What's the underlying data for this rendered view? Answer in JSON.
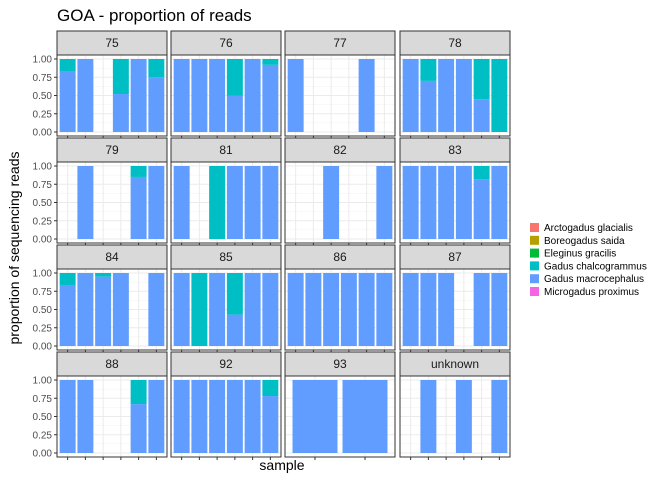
{
  "chart_data": {
    "type": "bar",
    "subtype": "stacked-proportion-faceted",
    "title": "GOA - proportion of reads",
    "xlabel": "sample",
    "ylabel": "proportion of sequencing reads",
    "ylim": [
      0,
      1
    ],
    "yticks": [
      "0.00",
      "0.25",
      "0.50",
      "0.75",
      "1.00"
    ],
    "grid": true,
    "legend_position": "right",
    "legend": [
      {
        "name": "Arctogadus glacialis",
        "color": "#F8766D"
      },
      {
        "name": "Boreogadus saida",
        "color": "#B79F00"
      },
      {
        "name": "Eleginus gracilis",
        "color": "#00BA38"
      },
      {
        "name": "Gadus chalcogrammus",
        "color": "#00BFC4"
      },
      {
        "name": "Gadus macrocephalus",
        "color": "#619CFF"
      },
      {
        "name": "Microgadus proximus",
        "color": "#F564E3"
      }
    ],
    "facets": [
      {
        "label": "75",
        "samples": 6,
        "bars": [
          {
            "slot": 0,
            "segments": [
              {
                "species": "Gadus macrocephalus",
                "value": 0.83
              },
              {
                "species": "Gadus chalcogrammus",
                "value": 0.17
              }
            ]
          },
          {
            "slot": 1,
            "segments": [
              {
                "species": "Gadus macrocephalus",
                "value": 1.0
              }
            ]
          },
          {
            "slot": 3,
            "segments": [
              {
                "species": "Gadus macrocephalus",
                "value": 0.52
              },
              {
                "species": "Gadus chalcogrammus",
                "value": 0.48
              }
            ]
          },
          {
            "slot": 4,
            "segments": [
              {
                "species": "Gadus macrocephalus",
                "value": 1.0
              }
            ]
          },
          {
            "slot": 5,
            "segments": [
              {
                "species": "Gadus macrocephalus",
                "value": 0.75
              },
              {
                "species": "Gadus chalcogrammus",
                "value": 0.25
              }
            ]
          }
        ]
      },
      {
        "label": "76",
        "samples": 6,
        "bars": [
          {
            "slot": 0,
            "segments": [
              {
                "species": "Gadus macrocephalus",
                "value": 1.0
              }
            ]
          },
          {
            "slot": 1,
            "segments": [
              {
                "species": "Gadus macrocephalus",
                "value": 1.0
              }
            ]
          },
          {
            "slot": 2,
            "segments": [
              {
                "species": "Gadus macrocephalus",
                "value": 1.0
              }
            ]
          },
          {
            "slot": 3,
            "segments": [
              {
                "species": "Gadus macrocephalus",
                "value": 0.5
              },
              {
                "species": "Gadus chalcogrammus",
                "value": 0.5
              }
            ]
          },
          {
            "slot": 4,
            "segments": [
              {
                "species": "Gadus macrocephalus",
                "value": 1.0
              }
            ]
          },
          {
            "slot": 5,
            "segments": [
              {
                "species": "Gadus macrocephalus",
                "value": 0.92
              },
              {
                "species": "Gadus chalcogrammus",
                "value": 0.08
              }
            ]
          }
        ]
      },
      {
        "label": "77",
        "samples": 6,
        "bars": [
          {
            "slot": 0,
            "segments": [
              {
                "species": "Gadus macrocephalus",
                "value": 1.0
              }
            ]
          },
          {
            "slot": 4,
            "segments": [
              {
                "species": "Gadus macrocephalus",
                "value": 1.0
              }
            ]
          }
        ]
      },
      {
        "label": "78",
        "samples": 6,
        "bars": [
          {
            "slot": 0,
            "segments": [
              {
                "species": "Gadus macrocephalus",
                "value": 1.0
              }
            ]
          },
          {
            "slot": 1,
            "segments": [
              {
                "species": "Gadus macrocephalus",
                "value": 0.7
              },
              {
                "species": "Gadus chalcogrammus",
                "value": 0.3
              }
            ]
          },
          {
            "slot": 2,
            "segments": [
              {
                "species": "Gadus macrocephalus",
                "value": 1.0
              }
            ]
          },
          {
            "slot": 3,
            "segments": [
              {
                "species": "Gadus macrocephalus",
                "value": 1.0
              }
            ]
          },
          {
            "slot": 4,
            "segments": [
              {
                "species": "Gadus macrocephalus",
                "value": 0.45
              },
              {
                "species": "Gadus chalcogrammus",
                "value": 0.55
              }
            ]
          },
          {
            "slot": 5,
            "segments": [
              {
                "species": "Gadus chalcogrammus",
                "value": 1.0
              }
            ]
          }
        ]
      },
      {
        "label": "79",
        "samples": 6,
        "bars": [
          {
            "slot": 1,
            "segments": [
              {
                "species": "Gadus macrocephalus",
                "value": 1.0
              }
            ]
          },
          {
            "slot": 4,
            "segments": [
              {
                "species": "Gadus macrocephalus",
                "value": 0.85
              },
              {
                "species": "Gadus chalcogrammus",
                "value": 0.15
              }
            ]
          },
          {
            "slot": 5,
            "segments": [
              {
                "species": "Gadus macrocephalus",
                "value": 1.0
              }
            ]
          }
        ]
      },
      {
        "label": "81",
        "samples": 6,
        "bars": [
          {
            "slot": 0,
            "segments": [
              {
                "species": "Gadus macrocephalus",
                "value": 1.0
              }
            ]
          },
          {
            "slot": 2,
            "segments": [
              {
                "species": "Gadus chalcogrammus",
                "value": 1.0
              }
            ]
          },
          {
            "slot": 3,
            "segments": [
              {
                "species": "Gadus macrocephalus",
                "value": 1.0
              }
            ]
          },
          {
            "slot": 4,
            "segments": [
              {
                "species": "Gadus macrocephalus",
                "value": 1.0
              }
            ]
          },
          {
            "slot": 5,
            "segments": [
              {
                "species": "Gadus macrocephalus",
                "value": 1.0
              }
            ]
          }
        ]
      },
      {
        "label": "82",
        "samples": 6,
        "bars": [
          {
            "slot": 2,
            "segments": [
              {
                "species": "Gadus macrocephalus",
                "value": 1.0
              }
            ]
          },
          {
            "slot": 5,
            "segments": [
              {
                "species": "Gadus macrocephalus",
                "value": 1.0
              }
            ]
          }
        ]
      },
      {
        "label": "83",
        "samples": 6,
        "bars": [
          {
            "slot": 0,
            "segments": [
              {
                "species": "Gadus macrocephalus",
                "value": 1.0
              }
            ]
          },
          {
            "slot": 1,
            "segments": [
              {
                "species": "Gadus macrocephalus",
                "value": 1.0
              }
            ]
          },
          {
            "slot": 2,
            "segments": [
              {
                "species": "Gadus macrocephalus",
                "value": 1.0
              }
            ]
          },
          {
            "slot": 3,
            "segments": [
              {
                "species": "Gadus macrocephalus",
                "value": 1.0
              }
            ]
          },
          {
            "slot": 4,
            "segments": [
              {
                "species": "Gadus macrocephalus",
                "value": 0.82
              },
              {
                "species": "Gadus chalcogrammus",
                "value": 0.18
              }
            ]
          },
          {
            "slot": 5,
            "segments": [
              {
                "species": "Gadus macrocephalus",
                "value": 1.0
              }
            ]
          }
        ]
      },
      {
        "label": "84",
        "samples": 6,
        "bars": [
          {
            "slot": 0,
            "segments": [
              {
                "species": "Gadus macrocephalus",
                "value": 0.83
              },
              {
                "species": "Gadus chalcogrammus",
                "value": 0.17
              }
            ]
          },
          {
            "slot": 1,
            "segments": [
              {
                "species": "Gadus macrocephalus",
                "value": 1.0
              }
            ]
          },
          {
            "slot": 2,
            "segments": [
              {
                "species": "Gadus macrocephalus",
                "value": 0.95
              },
              {
                "species": "Gadus chalcogrammus",
                "value": 0.05
              }
            ]
          },
          {
            "slot": 3,
            "segments": [
              {
                "species": "Gadus macrocephalus",
                "value": 1.0
              }
            ]
          },
          {
            "slot": 5,
            "segments": [
              {
                "species": "Gadus macrocephalus",
                "value": 1.0
              }
            ]
          }
        ]
      },
      {
        "label": "85",
        "samples": 6,
        "bars": [
          {
            "slot": 0,
            "segments": [
              {
                "species": "Gadus macrocephalus",
                "value": 1.0
              }
            ]
          },
          {
            "slot": 1,
            "segments": [
              {
                "species": "Gadus chalcogrammus",
                "value": 1.0
              }
            ]
          },
          {
            "slot": 2,
            "segments": [
              {
                "species": "Gadus macrocephalus",
                "value": 1.0
              }
            ]
          },
          {
            "slot": 3,
            "segments": [
              {
                "species": "Gadus macrocephalus",
                "value": 0.43
              },
              {
                "species": "Gadus chalcogrammus",
                "value": 0.57
              }
            ]
          },
          {
            "slot": 4,
            "segments": [
              {
                "species": "Gadus macrocephalus",
                "value": 1.0
              }
            ]
          },
          {
            "slot": 5,
            "segments": [
              {
                "species": "Gadus macrocephalus",
                "value": 1.0
              }
            ]
          }
        ]
      },
      {
        "label": "86",
        "samples": 6,
        "bars": [
          {
            "slot": 0,
            "segments": [
              {
                "species": "Gadus macrocephalus",
                "value": 1.0
              }
            ]
          },
          {
            "slot": 1,
            "segments": [
              {
                "species": "Gadus macrocephalus",
                "value": 1.0
              }
            ]
          },
          {
            "slot": 2,
            "segments": [
              {
                "species": "Gadus macrocephalus",
                "value": 1.0
              }
            ]
          },
          {
            "slot": 3,
            "segments": [
              {
                "species": "Gadus macrocephalus",
                "value": 1.0
              }
            ]
          },
          {
            "slot": 4,
            "segments": [
              {
                "species": "Gadus macrocephalus",
                "value": 1.0
              }
            ]
          },
          {
            "slot": 5,
            "segments": [
              {
                "species": "Gadus macrocephalus",
                "value": 1.0
              }
            ]
          }
        ]
      },
      {
        "label": "87",
        "samples": 6,
        "bars": [
          {
            "slot": 0,
            "segments": [
              {
                "species": "Gadus macrocephalus",
                "value": 1.0
              }
            ]
          },
          {
            "slot": 1,
            "segments": [
              {
                "species": "Gadus macrocephalus",
                "value": 1.0
              }
            ]
          },
          {
            "slot": 2,
            "segments": [
              {
                "species": "Gadus macrocephalus",
                "value": 1.0
              }
            ]
          },
          {
            "slot": 4,
            "segments": [
              {
                "species": "Gadus macrocephalus",
                "value": 1.0
              }
            ]
          },
          {
            "slot": 5,
            "segments": [
              {
                "species": "Gadus macrocephalus",
                "value": 1.0
              }
            ]
          }
        ]
      },
      {
        "label": "88",
        "samples": 6,
        "bars": [
          {
            "slot": 0,
            "segments": [
              {
                "species": "Gadus macrocephalus",
                "value": 1.0
              }
            ]
          },
          {
            "slot": 1,
            "segments": [
              {
                "species": "Gadus macrocephalus",
                "value": 1.0
              }
            ]
          },
          {
            "slot": 4,
            "segments": [
              {
                "species": "Gadus macrocephalus",
                "value": 0.67
              },
              {
                "species": "Gadus chalcogrammus",
                "value": 0.33
              }
            ]
          },
          {
            "slot": 5,
            "segments": [
              {
                "species": "Gadus macrocephalus",
                "value": 1.0
              }
            ]
          }
        ]
      },
      {
        "label": "92",
        "samples": 6,
        "bars": [
          {
            "slot": 0,
            "segments": [
              {
                "species": "Gadus macrocephalus",
                "value": 1.0
              }
            ]
          },
          {
            "slot": 1,
            "segments": [
              {
                "species": "Gadus macrocephalus",
                "value": 1.0
              }
            ]
          },
          {
            "slot": 2,
            "segments": [
              {
                "species": "Gadus macrocephalus",
                "value": 1.0
              }
            ]
          },
          {
            "slot": 3,
            "segments": [
              {
                "species": "Gadus macrocephalus",
                "value": 1.0
              }
            ]
          },
          {
            "slot": 4,
            "segments": [
              {
                "species": "Gadus macrocephalus",
                "value": 1.0
              }
            ]
          },
          {
            "slot": 5,
            "segments": [
              {
                "species": "Gadus macrocephalus",
                "value": 0.78
              },
              {
                "species": "Gadus chalcogrammus",
                "value": 0.22
              }
            ]
          }
        ]
      },
      {
        "label": "93",
        "samples": 2,
        "bars": [
          {
            "slot": 0,
            "segments": [
              {
                "species": "Gadus macrocephalus",
                "value": 1.0
              }
            ]
          },
          {
            "slot": 1,
            "segments": [
              {
                "species": "Gadus macrocephalus",
                "value": 1.0
              }
            ]
          }
        ]
      },
      {
        "label": "unknown",
        "samples": 6,
        "bars": [
          {
            "slot": 1,
            "segments": [
              {
                "species": "Gadus macrocephalus",
                "value": 1.0
              }
            ]
          },
          {
            "slot": 3,
            "segments": [
              {
                "species": "Gadus macrocephalus",
                "value": 1.0
              }
            ]
          },
          {
            "slot": 5,
            "segments": [
              {
                "species": "Gadus macrocephalus",
                "value": 1.0
              }
            ]
          }
        ]
      }
    ]
  }
}
